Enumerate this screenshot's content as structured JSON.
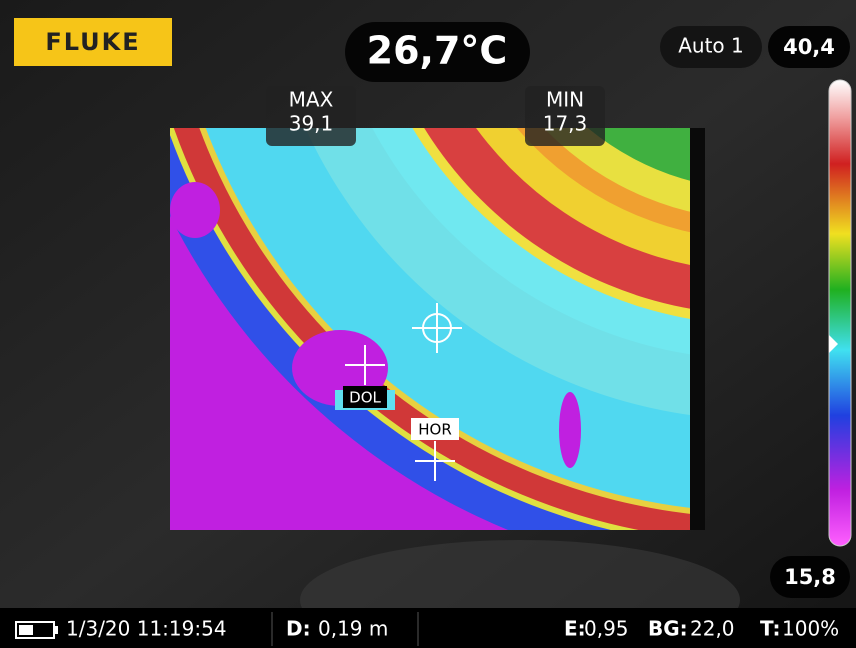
{
  "brand": "FLUKE",
  "center_temperature": "26,7°C",
  "range_mode": "Auto 1",
  "scale": {
    "max": "40,4",
    "min": "15,8"
  },
  "markers": {
    "max": {
      "label": "MAX",
      "value": "39,1"
    },
    "min": {
      "label": "MIN",
      "value": "17,3"
    },
    "spots": [
      "DOL",
      "HOR"
    ]
  },
  "status_bar": {
    "datetime": "1/3/20 11:19:54",
    "distance_label": "D:",
    "distance": "0,19 m",
    "emissivity_label": "E:",
    "emissivity": "0,95",
    "background_label": "BG:",
    "background": "22,0",
    "transmission_label": "T:",
    "transmission": "100%"
  }
}
